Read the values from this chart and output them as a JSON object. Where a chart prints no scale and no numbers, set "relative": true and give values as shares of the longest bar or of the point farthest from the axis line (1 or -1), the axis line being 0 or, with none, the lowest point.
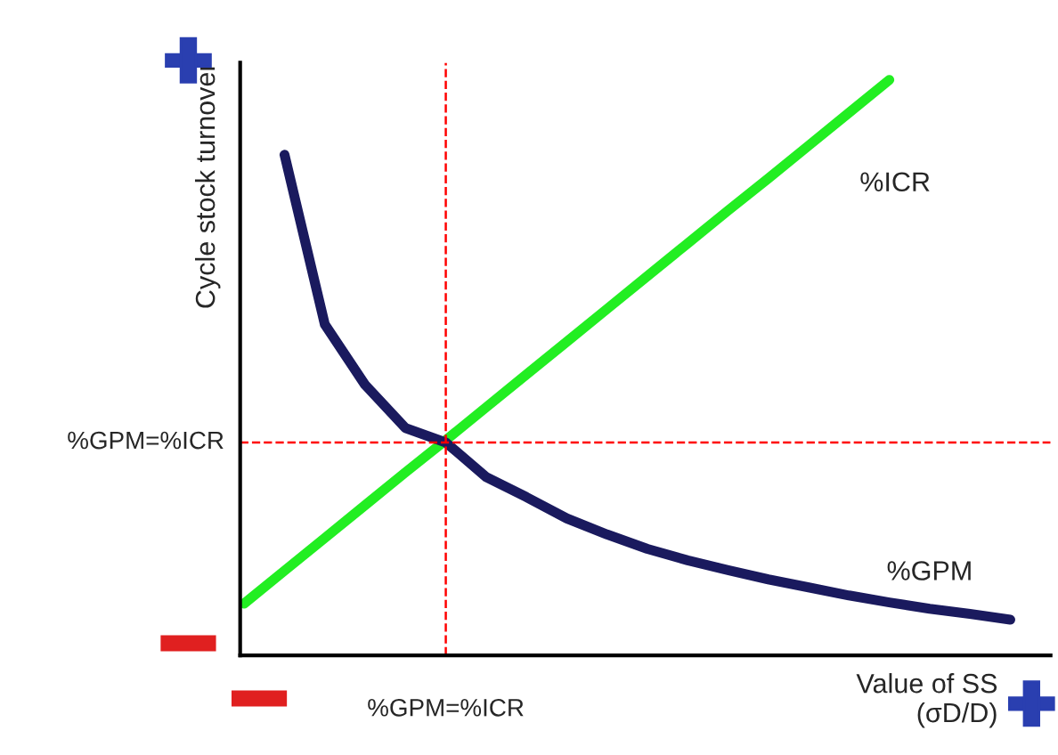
{
  "chart_data": {
    "type": "line",
    "relative": true,
    "xlabel": "Value of SS\n(σD/D)",
    "ylabel": "Cycle stock turnover",
    "legend": false,
    "marker": "none",
    "categories": [
      null,
      null,
      null,
      null,
      null,
      null,
      null,
      null,
      null,
      null,
      null,
      null,
      null,
      null,
      null,
      null,
      null,
      null,
      null,
      null
    ],
    "series": [
      {
        "name": "%ICR",
        "color": "#22ee22",
        "values": [
          0.09,
          0.147,
          0.204,
          0.261,
          0.318,
          0.374,
          0.431,
          0.488,
          0.545,
          0.602,
          0.659,
          0.716,
          0.773,
          0.829,
          0.886,
          0.943,
          1.0,
          null,
          null,
          null
        ]
      },
      {
        "name": "%GPM",
        "color": "#1a1a5e",
        "values": [
          null,
          0.87,
          0.575,
          0.47,
          0.395,
          0.37,
          0.31,
          0.275,
          0.238,
          0.21,
          0.185,
          0.165,
          0.148,
          0.132,
          0.118,
          0.104,
          0.092,
          0.081,
          0.072,
          0.062
        ]
      }
    ],
    "ref_lines": [
      {
        "axis": "y",
        "value": 0.37,
        "label": "%GPM=%ICR",
        "color": "#ff0000",
        "line_style": "dashed"
      }
    ],
    "annotations": [
      "%GPM=%ICR"
    ]
  }
}
